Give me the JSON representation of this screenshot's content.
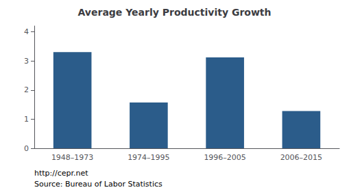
{
  "chart_data": {
    "type": "bar",
    "title": "Average Yearly Productivity Growth",
    "categories": [
      "1948–1973",
      "1974–1995",
      "1996–2005",
      "2006–2015"
    ],
    "values": [
      3.3,
      1.57,
      3.12,
      1.28
    ],
    "color": "#2b5c8a",
    "ylim": [
      0,
      4.2
    ],
    "yticks": [
      0,
      1,
      2,
      3,
      4
    ],
    "grid": false,
    "annotations": [
      "http://cepr.net",
      "Source: Bureau of Labor Statistics"
    ]
  }
}
